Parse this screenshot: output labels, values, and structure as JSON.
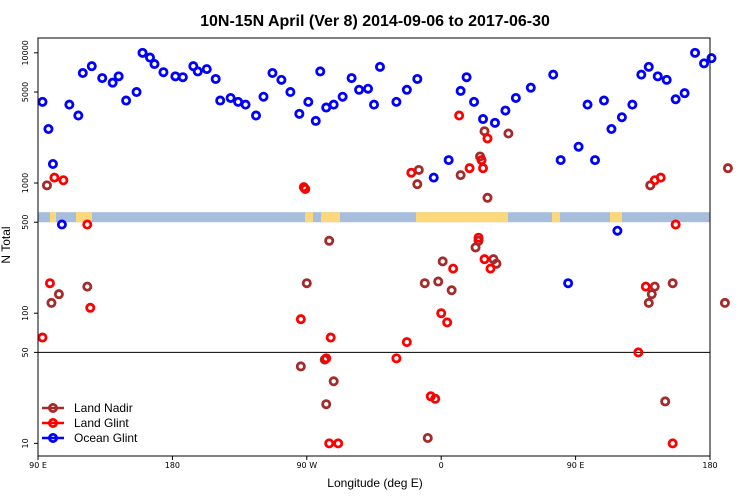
{
  "chart_data": {
    "type": "scatter",
    "title": "10N-15N April (Ver 8)   2014-09-06 to 2017-06-30",
    "xlabel": "Longitude (deg E)",
    "ylabel": "N Total",
    "x_ticks": [
      {
        "value": 90,
        "label": "90 E"
      },
      {
        "value": 180,
        "label": "180"
      },
      {
        "value": 270,
        "label": "90 W"
      },
      {
        "value": 360,
        "label": "0"
      },
      {
        "value": 450,
        "label": "90 E"
      },
      {
        "value": 540,
        "label": "180"
      }
    ],
    "xlim": [
      90,
      540
    ],
    "ylim": [
      8,
      13000
    ],
    "y_scale": "log",
    "y_ticks": [
      {
        "value": 10,
        "label": "10"
      },
      {
        "value": 50,
        "label": "50"
      },
      {
        "value": 100,
        "label": "100"
      },
      {
        "value": 500,
        "label": "500"
      },
      {
        "value": 1000,
        "label": "1000"
      },
      {
        "value": 5000,
        "label": "5000"
      },
      {
        "value": 10000,
        "label": "10000"
      }
    ],
    "reference_line": 50,
    "band": {
      "value": 500,
      "color": "#a6bddb",
      "land_color": "#fdd87a"
    },
    "legend_position": "bottom-left",
    "series": [
      {
        "name": "Land Nadir",
        "color": "#a52a2a",
        "x": [
          96,
          99,
          104,
          123,
          266,
          270,
          282,
          283,
          285,
          288,
          344,
          345,
          349,
          351,
          358,
          361,
          367,
          373,
          383,
          385,
          386,
          389,
          391,
          395,
          397,
          405,
          499,
          500,
          501,
          503,
          510,
          515,
          552,
          550
        ],
        "y": [
          960,
          120,
          140,
          160,
          39,
          170,
          44,
          20,
          360,
          30,
          980,
          1260,
          170,
          11,
          175,
          250,
          150,
          1150,
          320,
          360,
          1600,
          2500,
          770,
          260,
          240,
          2400,
          120,
          960,
          140,
          160,
          21,
          170,
          1300,
          120
        ]
      },
      {
        "name": "Land Glint",
        "color": "#ff0000",
        "x": [
          93,
          98,
          101,
          107,
          123,
          125,
          266,
          268,
          269,
          283,
          285,
          286,
          291,
          330,
          337,
          340,
          353,
          356,
          360,
          364,
          368,
          372,
          379,
          385,
          387,
          388,
          389,
          391,
          393,
          492,
          497,
          503,
          507,
          515,
          517
        ],
        "y": [
          65,
          170,
          1100,
          1050,
          480,
          110,
          90,
          930,
          900,
          45,
          10,
          65,
          10,
          45,
          60,
          1200,
          23,
          22,
          100,
          85,
          220,
          3300,
          1300,
          380,
          1500,
          1300,
          260,
          2200,
          220,
          50,
          160,
          1050,
          1100,
          10,
          480
        ]
      },
      {
        "name": "Ocean Glint",
        "color": "#0000ff",
        "x": [
          93,
          97,
          100,
          106,
          111,
          117,
          120,
          126,
          133,
          140,
          144,
          149,
          156,
          160,
          165,
          168,
          174,
          182,
          187,
          194,
          197,
          203,
          209,
          212,
          219,
          224,
          229,
          236,
          241,
          247,
          253,
          259,
          265,
          271,
          276,
          279,
          283,
          288,
          294,
          300,
          305,
          311,
          315,
          319,
          330,
          337,
          344,
          355,
          365,
          373,
          377,
          382,
          388,
          396,
          403,
          410,
          420,
          435,
          440,
          445,
          452,
          458,
          463,
          469,
          474,
          478,
          481,
          488,
          494,
          499,
          505,
          511,
          517,
          523,
          530,
          536,
          541
        ],
        "y": [
          4200,
          2600,
          1400,
          480,
          4000,
          3300,
          7000,
          7900,
          6400,
          5900,
          6600,
          4300,
          5000,
          10000,
          9200,
          8200,
          7100,
          6600,
          6500,
          7900,
          7200,
          7500,
          6300,
          4300,
          4500,
          4200,
          4000,
          3300,
          4600,
          7000,
          6200,
          5000,
          3400,
          4200,
          3000,
          7200,
          3800,
          4000,
          4600,
          6400,
          5200,
          5300,
          4000,
          7800,
          4200,
          5200,
          6300,
          1100,
          1500,
          5100,
          6500,
          4200,
          3100,
          2900,
          3600,
          4500,
          5400,
          6800,
          1500,
          170,
          1900,
          4000,
          1500,
          4300,
          2600,
          430,
          3200,
          4000,
          6800,
          7800,
          6600,
          6200,
          4400,
          4900,
          10000,
          8300,
          9100
        ]
      }
    ]
  }
}
